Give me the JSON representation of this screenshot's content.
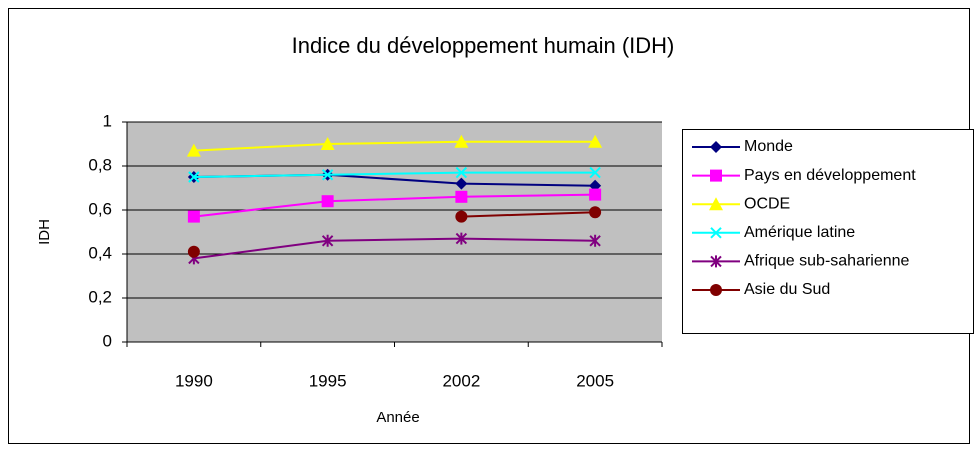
{
  "chart_data": {
    "type": "line",
    "title": "Indice du développement humain (IDH)",
    "x_label": "Année",
    "y_label": "IDH",
    "categories": [
      "1990",
      "1995",
      "2002",
      "2005"
    ],
    "series": [
      {
        "name": "Monde",
        "color": "#000080",
        "marker": "diamond",
        "values": [
          0.75,
          0.76,
          0.72,
          0.71
        ]
      },
      {
        "name": "Pays en développement",
        "color": "#ff00ff",
        "marker": "square",
        "values": [
          0.57,
          0.64,
          0.66,
          0.67
        ]
      },
      {
        "name": "OCDE",
        "color": "#ffff00",
        "marker": "triangle",
        "values": [
          0.87,
          0.9,
          0.91,
          0.91
        ]
      },
      {
        "name": "Amérique latine",
        "color": "#00ffff",
        "marker": "x",
        "values": [
          0.75,
          0.76,
          0.77,
          0.77
        ]
      },
      {
        "name": "Afrique sub-saharienne",
        "color": "#800080",
        "marker": "star",
        "values": [
          0.38,
          0.46,
          0.47,
          0.46
        ]
      },
      {
        "name": "Asie du Sud",
        "color": "#800000",
        "marker": "circle",
        "values": [
          0.41,
          null,
          0.57,
          0.59
        ]
      }
    ],
    "ylim": [
      0,
      1
    ],
    "yticks": [
      0,
      {
        "value": 0.2,
        "label": "0,2"
      },
      {
        "value": 0.4,
        "label": "0,4"
      },
      {
        "value": 0.6,
        "label": "0,6"
      },
      {
        "value": 0.8,
        "label": "0,8"
      },
      1
    ],
    "grid": true,
    "legend": "right"
  }
}
